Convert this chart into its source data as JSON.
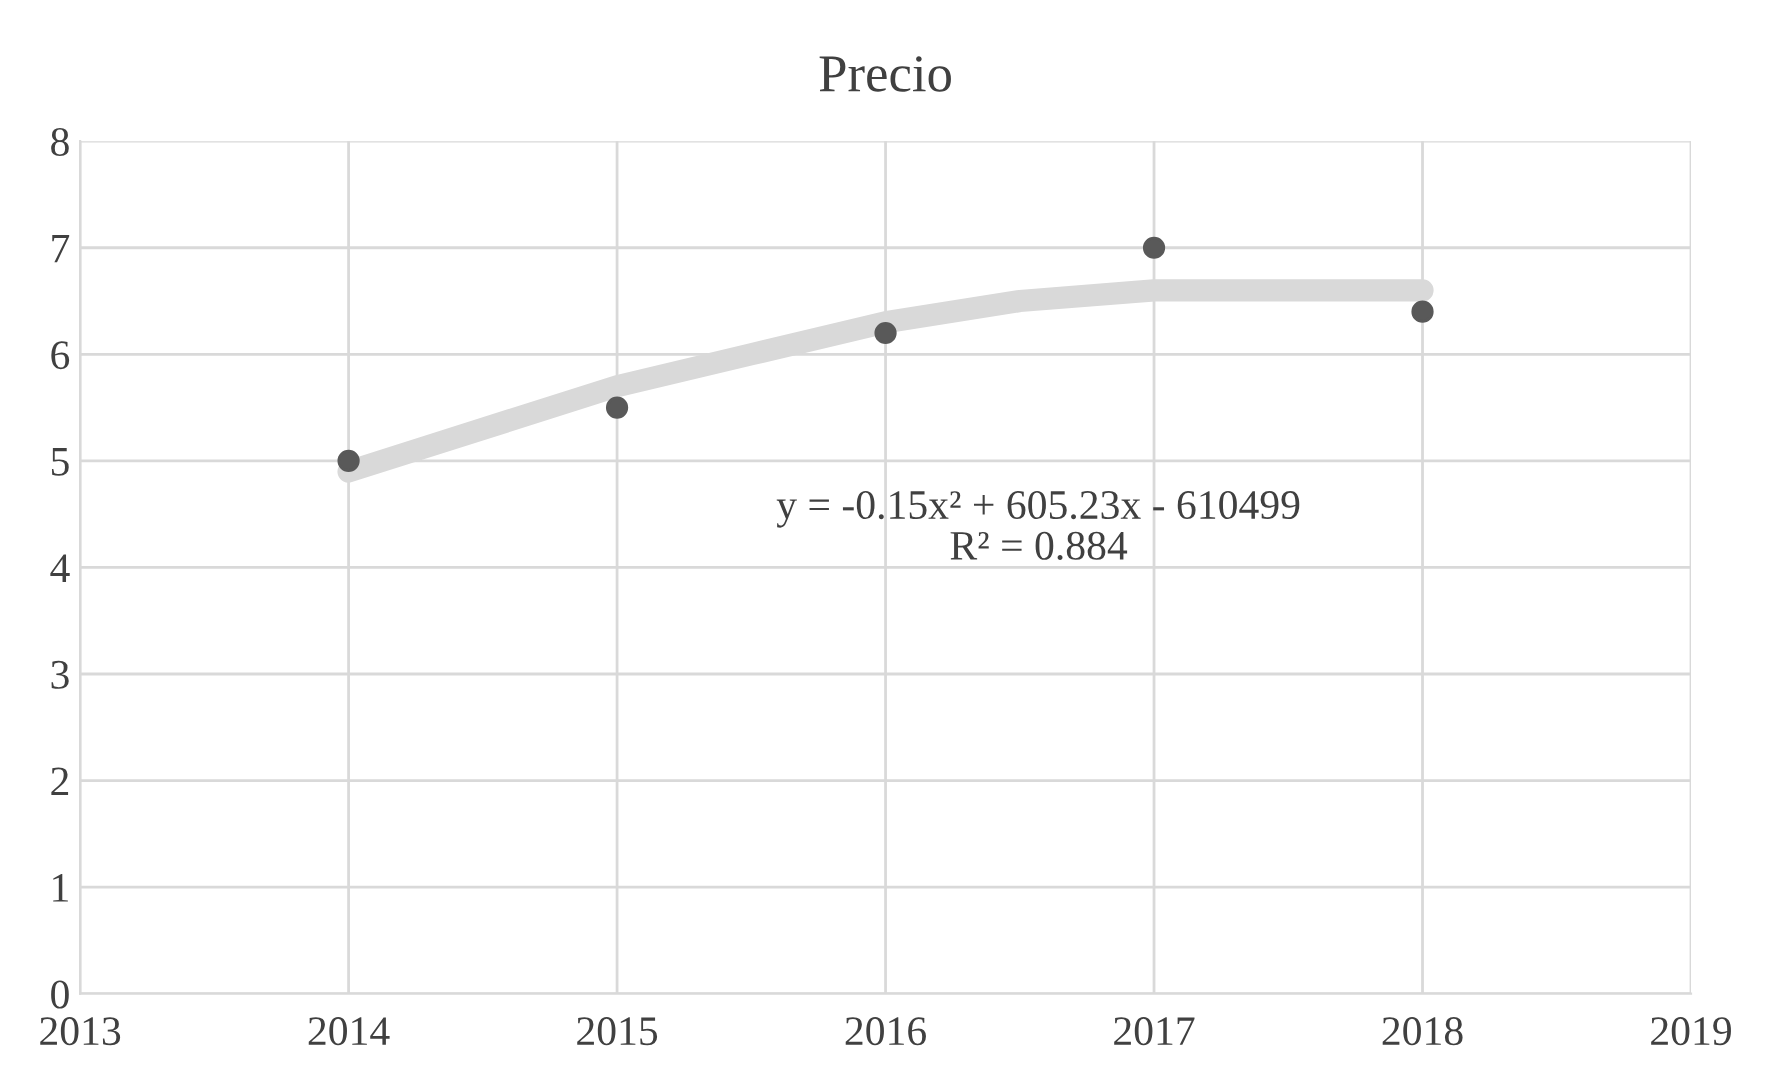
{
  "chart_data": {
    "type": "scatter",
    "title": "Precio",
    "series": [
      {
        "color": "#595959",
        "marker": "circle",
        "x": [
          2014,
          2015,
          2016,
          2017,
          2018
        ],
        "values": [
          5,
          5.5,
          6.2,
          7,
          6.4
        ]
      },
      {
        "type": "line",
        "color": "#d9d9d9",
        "x": [
          2014,
          2014.5,
          2015,
          2015.5,
          2016,
          2016.5,
          2017,
          2017.5,
          2018
        ],
        "values": [
          4.9,
          5.3,
          5.7,
          6.0,
          6.3,
          6.5,
          6.6,
          6.6,
          6.6
        ]
      }
    ],
    "xlim": [
      2013,
      2019
    ],
    "xticks": [
      2013,
      2014,
      2015,
      2016,
      2017,
      2018,
      2019
    ],
    "ylim": [
      0,
      8
    ],
    "yticks": [
      0,
      1,
      2,
      3,
      4,
      5,
      6,
      7,
      8
    ],
    "grid": true,
    "legend": false,
    "annotations": [
      "y = -0.15x² + 605.23x - 610499\nR² = 0.884"
    ]
  }
}
